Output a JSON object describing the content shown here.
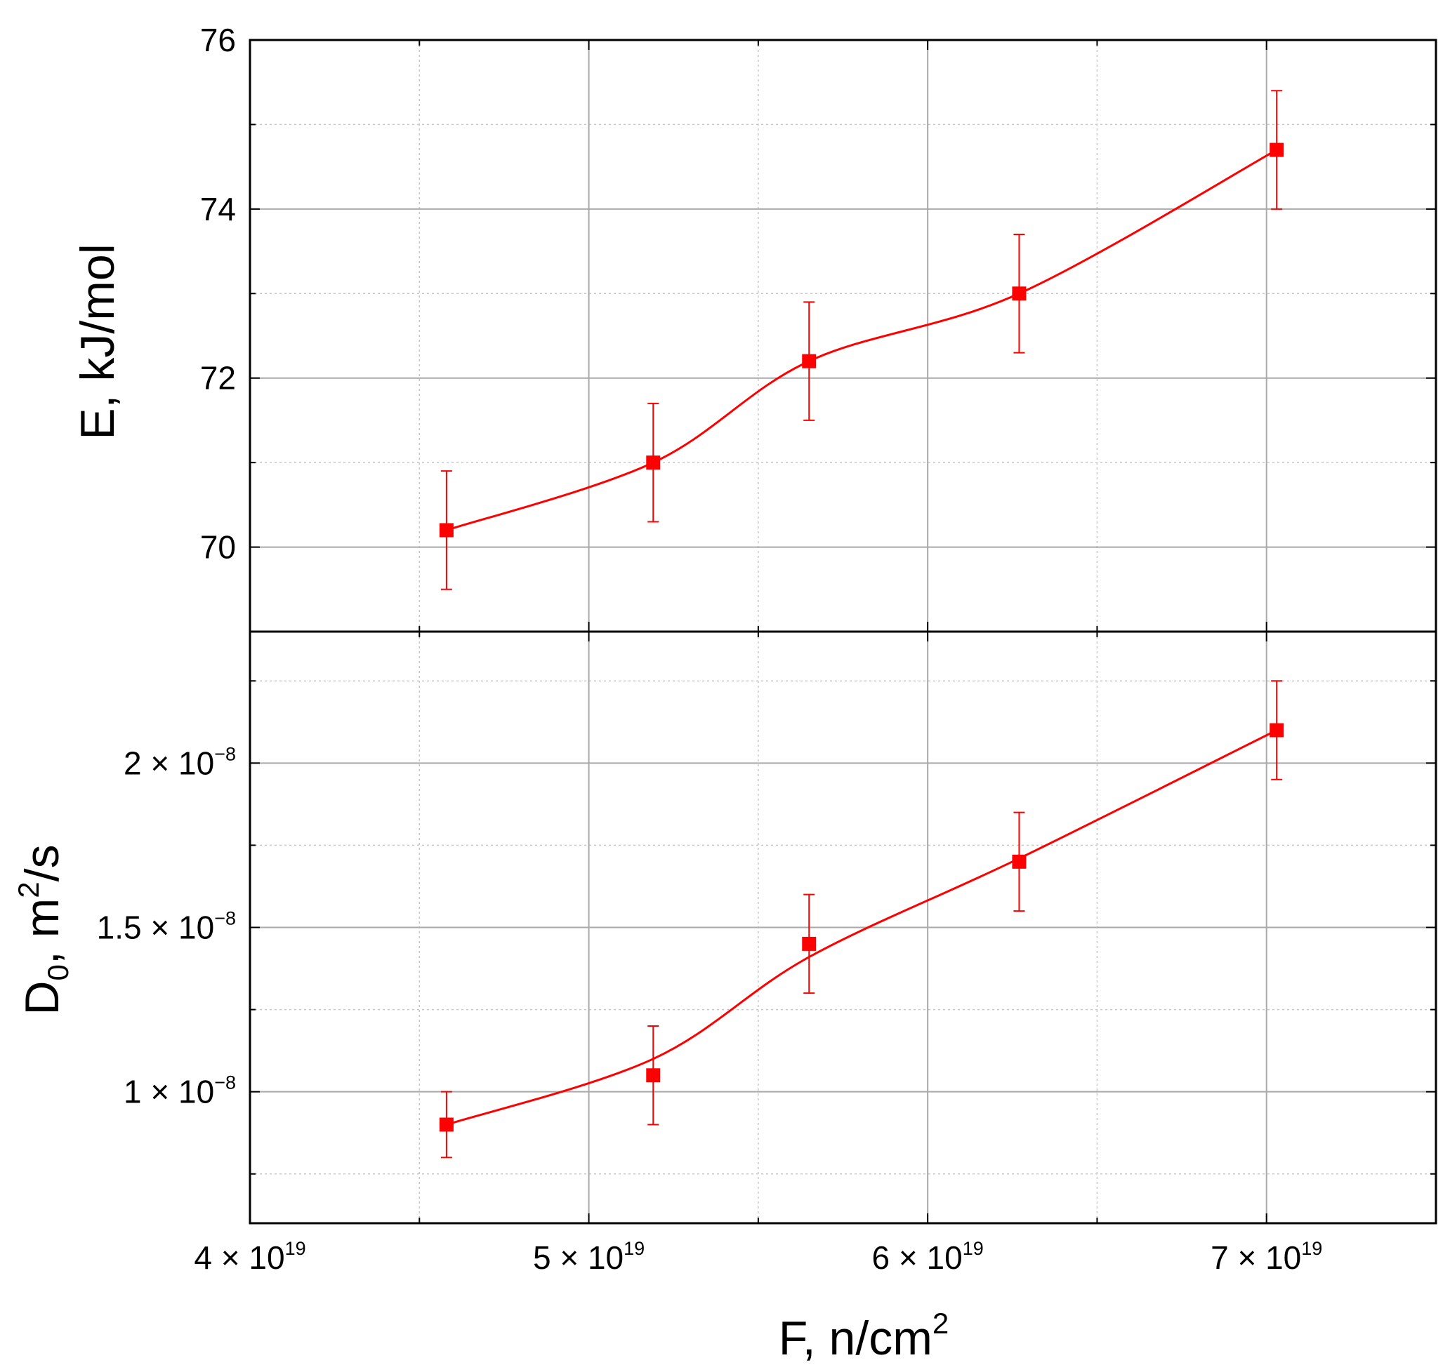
{
  "chart_data": {
    "type": "scatter",
    "x_axis": {
      "label_main": "F, n/cm",
      "label_sup": "2",
      "range": [
        4e+19,
        7.5e+19
      ],
      "major_ticks": [
        4e+19,
        5e+19,
        6e+19,
        7e+19
      ],
      "minor_ticks": [
        4.5e+19,
        5.5e+19,
        6.5e+19
      ],
      "tick_labels": [
        {
          "mantissa": "4 × 10",
          "exponent": "19"
        },
        {
          "mantissa": "5 × 10",
          "exponent": "19"
        },
        {
          "mantissa": "6 × 10",
          "exponent": "19"
        },
        {
          "mantissa": "7 × 10",
          "exponent": "19"
        }
      ]
    },
    "x": [
      4.58e+19,
      5.19e+19,
      5.65e+19,
      6.27e+19,
      7.03e+19
    ],
    "panels": [
      {
        "y_axis": {
          "label": "E, kJ/mol",
          "range": [
            69.0,
            76.0
          ],
          "major_ticks": [
            70,
            72,
            74,
            76
          ],
          "minor_ticks": [
            71,
            73,
            75
          ],
          "tick_labels": [
            "70",
            "72",
            "74",
            "76"
          ]
        },
        "series": [
          {
            "values": [
              70.2,
              71.0,
              72.2,
              73.0,
              74.7
            ],
            "error_plus": [
              0.7,
              0.7,
              0.7,
              0.7,
              0.7
            ],
            "error_minus": [
              0.7,
              0.7,
              0.7,
              0.7,
              0.7
            ],
            "color": "#ff0000",
            "marker": "square",
            "line": "smooth"
          }
        ]
      },
      {
        "y_axis": {
          "label_main": "D",
          "label_sub": "0",
          "label_mid": ", m",
          "label_sup": "2",
          "label_end": "/s",
          "range": [
            6e-09,
            2.4e-08
          ],
          "major_ticks": [
            1e-08,
            1.5e-08,
            2e-08
          ],
          "minor_ticks": [
            7.5e-09,
            1.25e-08,
            1.75e-08,
            2.25e-08
          ],
          "tick_labels": [
            {
              "mantissa": "1 × 10",
              "exponent": "−8"
            },
            {
              "mantissa": "1.5 × 10",
              "exponent": "−8"
            },
            {
              "mantissa": "2 × 10",
              "exponent": "−8"
            }
          ]
        },
        "series": [
          {
            "values": [
              9e-09,
              1.05e-08,
              1.45e-08,
              1.7e-08,
              2.1e-08
            ],
            "error_plus": [
              1e-09,
              1.5e-09,
              1.5e-09,
              1.5e-09,
              1.5e-09
            ],
            "error_minus": [
              1e-09,
              1.5e-09,
              1.5e-09,
              1.5e-09,
              1.5e-09
            ],
            "fit_line": [
              9e-09,
              1.1e-08,
              1.41e-08,
              1.71e-08,
              2.1e-08
            ],
            "color": "#ff0000",
            "marker": "square",
            "line": "smooth"
          }
        ]
      }
    ],
    "grid": "major solid, minor dotted"
  }
}
